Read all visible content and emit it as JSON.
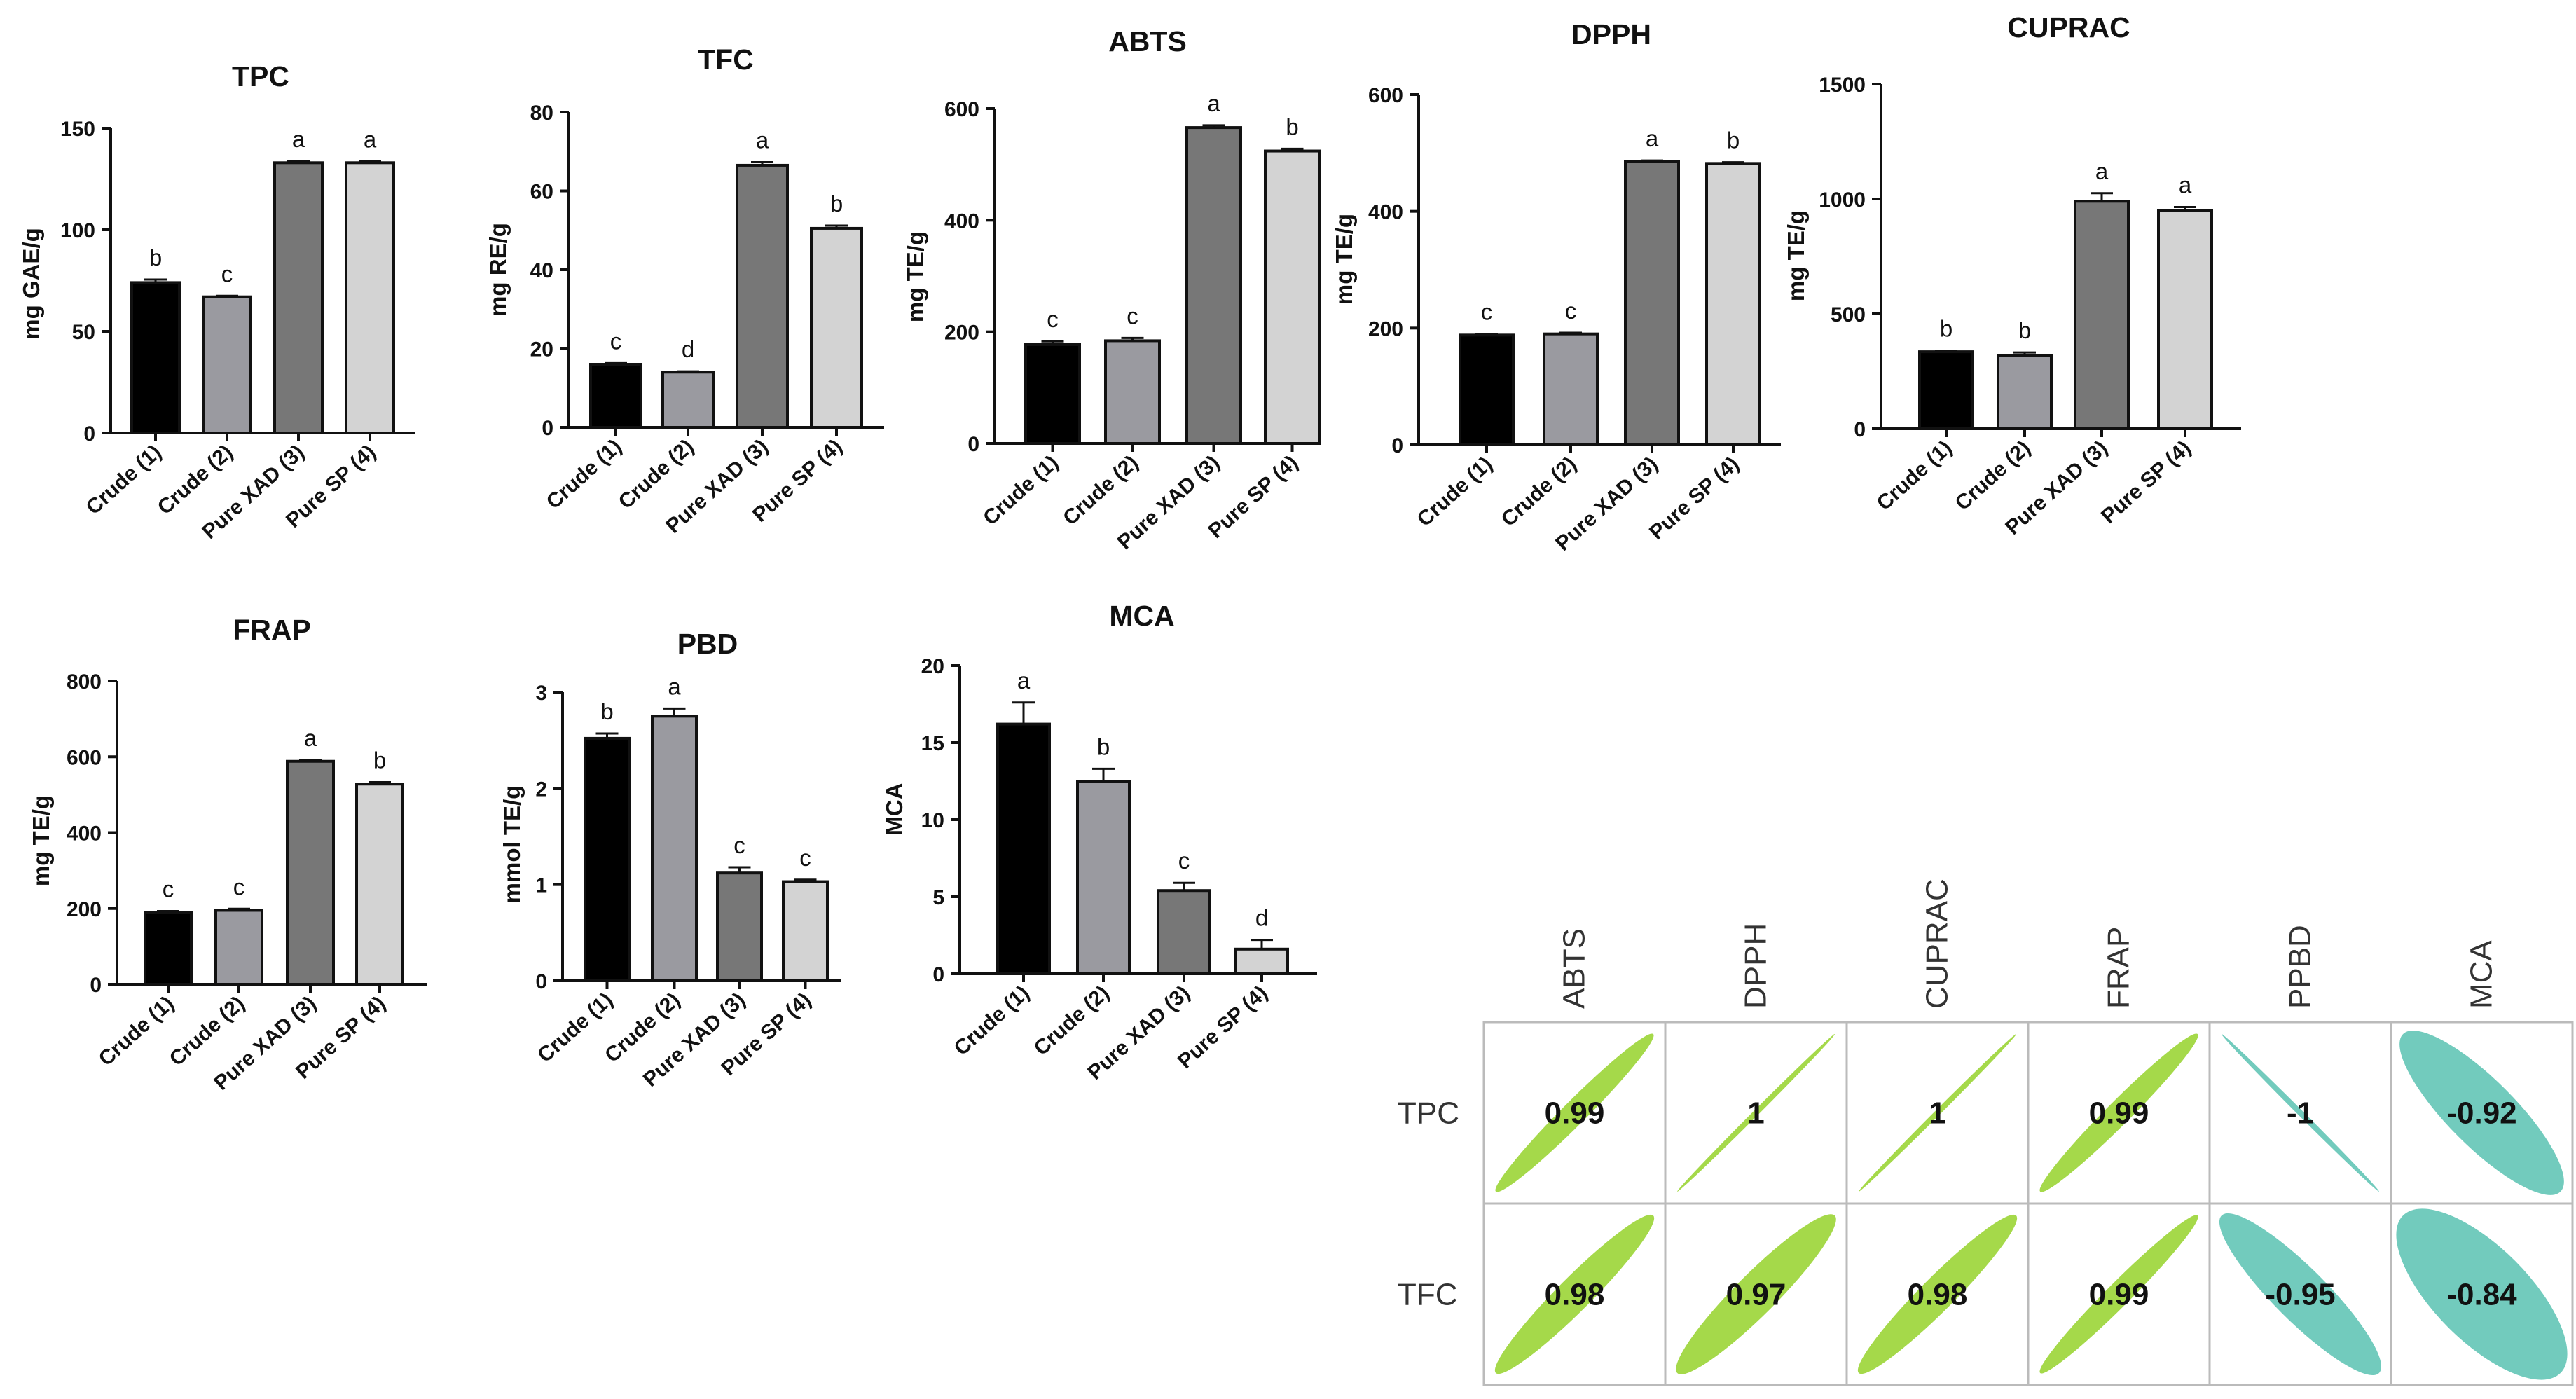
{
  "chart_data": [
    {
      "id": "tpc",
      "type": "bar",
      "title": "TPC",
      "ylabel": "mg  GAE/g",
      "categories": [
        "Crude (1)",
        "Crude (2)",
        "Pure XAD (3)",
        "Pure SP (4)"
      ],
      "values": [
        74,
        67,
        133,
        133
      ],
      "errors": [
        1.5,
        0.5,
        0.8,
        0.6
      ],
      "letters": [
        "b",
        "c",
        "a",
        "a"
      ],
      "ylim": [
        0,
        150
      ],
      "yticks": [
        0,
        50,
        100,
        150
      ]
    },
    {
      "id": "tfc",
      "type": "bar",
      "title": "TFC",
      "ylabel": "mg RE/g",
      "categories": [
        "Crude (1)",
        "Crude (2)",
        "Pure XAD (3)",
        "Pure SP (4)"
      ],
      "values": [
        16,
        14,
        66.5,
        50.5
      ],
      "errors": [
        0.3,
        0.2,
        0.8,
        0.7
      ],
      "letters": [
        "c",
        "d",
        "a",
        "b"
      ],
      "ylim": [
        0,
        80
      ],
      "yticks": [
        0,
        20,
        40,
        60,
        80
      ]
    },
    {
      "id": "abts",
      "type": "bar",
      "title": "ABTS",
      "ylabel": "mg TE/g",
      "categories": [
        "Crude (1)",
        "Crude (2)",
        "Pure XAD (3)",
        "Pure SP (4)"
      ],
      "values": [
        177,
        184,
        566,
        524
      ],
      "errors": [
        6,
        5,
        4,
        4
      ],
      "letters": [
        "c",
        "c",
        "a",
        "b"
      ],
      "ylim": [
        0,
        600
      ],
      "yticks": [
        0,
        200,
        400,
        600
      ]
    },
    {
      "id": "dpph",
      "type": "bar",
      "title": "DPPH",
      "ylabel": "mg  TE/g",
      "categories": [
        "Crude (1)",
        "Crude (2)",
        "Pure XAD (3)",
        "Pure SP (4)"
      ],
      "values": [
        188,
        190,
        485,
        482
      ],
      "errors": [
        2,
        2,
        2,
        2
      ],
      "letters": [
        "c",
        "c",
        "a",
        "b"
      ],
      "ylim": [
        0,
        600
      ],
      "yticks": [
        0,
        200,
        400,
        600
      ]
    },
    {
      "id": "cuprac",
      "type": "bar",
      "title": "CUPRAC",
      "ylabel": "mg  TE/g",
      "categories": [
        "Crude (1)",
        "Crude (2)",
        "Pure XAD (3)",
        "Pure SP (4)"
      ],
      "values": [
        335,
        320,
        990,
        950
      ],
      "errors": [
        5,
        12,
        35,
        15
      ],
      "letters": [
        "b",
        "b",
        "a",
        "a"
      ],
      "ylim": [
        0,
        1500
      ],
      "yticks": [
        0,
        500,
        1000,
        1500
      ]
    },
    {
      "id": "frap",
      "type": "bar",
      "title": "FRAP",
      "ylabel": "mg  TE/g",
      "categories": [
        "Crude (1)",
        "Crude (2)",
        "Pure XAD (3)",
        "Pure SP (4)"
      ],
      "values": [
        190,
        195,
        588,
        528
      ],
      "errors": [
        3,
        4,
        3,
        5
      ],
      "letters": [
        "c",
        "c",
        "a",
        "b"
      ],
      "ylim": [
        0,
        800
      ],
      "yticks": [
        0,
        200,
        400,
        600,
        800
      ]
    },
    {
      "id": "pbd",
      "type": "bar",
      "title": "PBD",
      "ylabel": "mmol  TE/g",
      "categories": [
        "Crude (1)",
        "Crude (2)",
        "Pure XAD (3)",
        "Pure SP (4)"
      ],
      "values": [
        2.52,
        2.75,
        1.12,
        1.03
      ],
      "errors": [
        0.05,
        0.08,
        0.06,
        0.02
      ],
      "letters": [
        "b",
        "a",
        "c",
        "c"
      ],
      "ylim": [
        0,
        3
      ],
      "yticks": [
        0,
        1,
        2,
        3
      ]
    },
    {
      "id": "mca",
      "type": "bar",
      "title": "MCA",
      "ylabel": "MCA",
      "categories": [
        "Crude (1)",
        "Crude (2)",
        "Pure XAD (3)",
        "Pure SP (4)"
      ],
      "values": [
        16.2,
        12.5,
        5.4,
        1.6
      ],
      "errors": [
        1.4,
        0.8,
        0.5,
        0.6
      ],
      "letters": [
        "a",
        "b",
        "c",
        "d"
      ],
      "ylim": [
        0,
        20
      ],
      "yticks": [
        0,
        5,
        10,
        15,
        20
      ]
    },
    {
      "id": "corr",
      "type": "heatmap",
      "title": "",
      "columns": [
        "ABTS",
        "DPPH",
        "CUPRAC",
        "FRAP",
        "PPBD",
        "MCA"
      ],
      "rows": [
        "TPC",
        "TFC"
      ],
      "values": [
        [
          0.99,
          1,
          1,
          0.99,
          -1,
          -0.92
        ],
        [
          0.98,
          0.97,
          0.98,
          0.99,
          -0.95,
          -0.84
        ]
      ],
      "labels": [
        [
          "0.99",
          "1",
          "1",
          "0.99",
          "-1",
          "-0.92"
        ],
        [
          "0.98",
          "0.97",
          "0.98",
          "0.99",
          "-0.95",
          "-0.84"
        ]
      ]
    }
  ],
  "colors": {
    "bars": [
      "#000000",
      "#9a9aa0",
      "#777777",
      "#d3d3d3"
    ],
    "positive": "#a5d94a",
    "negative": "#72cbbd",
    "grid": "#bbbbbb"
  }
}
